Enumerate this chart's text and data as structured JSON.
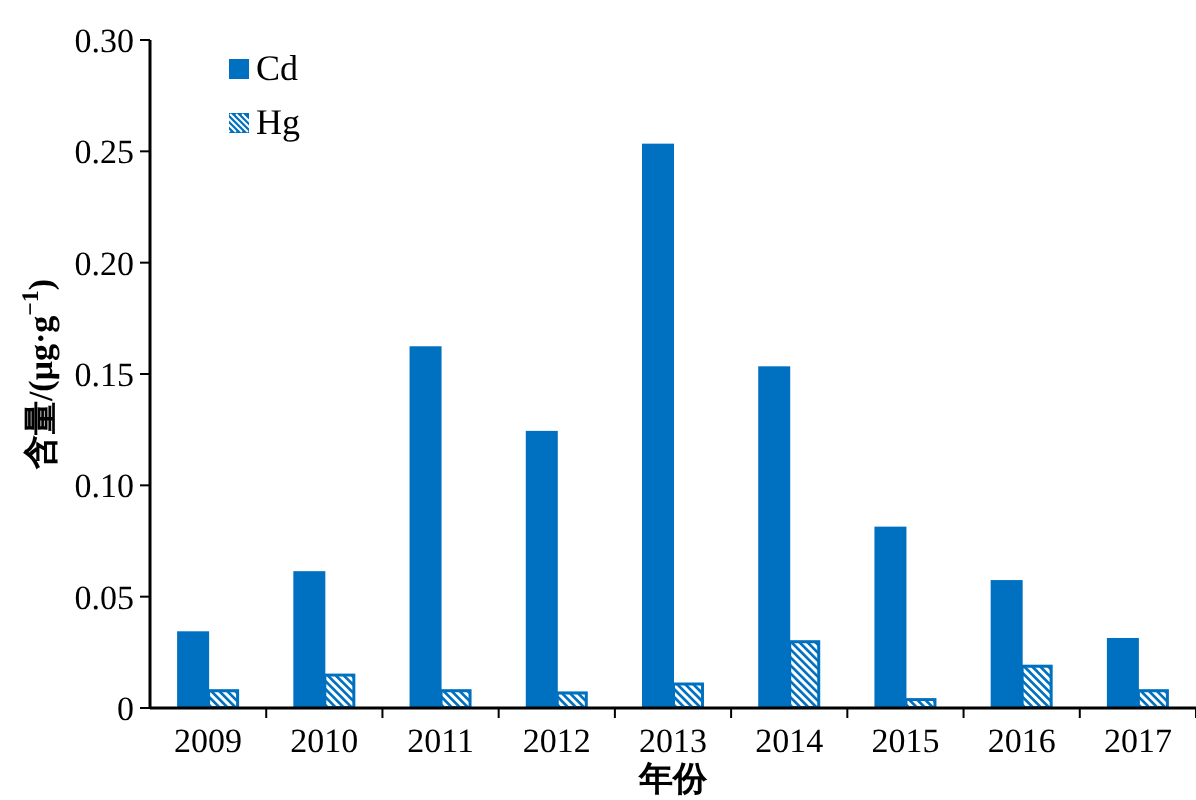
{
  "chart_data": {
    "type": "bar",
    "xlabel": "年份",
    "ylabel": "含量/(μg·g$^{−1}$)",
    "categories": [
      "2009",
      "2010",
      "2011",
      "2012",
      "2013",
      "2014",
      "2015",
      "2016",
      "2017"
    ],
    "series": [
      {
        "name": "Cd",
        "color": "#0070c0",
        "values": [
          0.034,
          0.061,
          0.162,
          0.124,
          0.253,
          0.153,
          0.081,
          0.057,
          0.031
        ]
      },
      {
        "name": "Hg",
        "color": "#0070c0",
        "values": [
          0.008,
          0.015,
          0.008,
          0.007,
          0.011,
          0.03,
          0.004,
          0.019,
          0.008
        ]
      }
    ],
    "ylim": [
      0,
      0.3
    ],
    "yticks": [
      0,
      0.05,
      {
        "value": 0.1,
        "label": "0.10"
      },
      0.15,
      {
        "value": 0.2,
        "label": "0.20"
      },
      0.25,
      {
        "value": 0.3,
        "label": "0.30"
      }
    ],
    "legend": "top left",
    "grid": false
  }
}
